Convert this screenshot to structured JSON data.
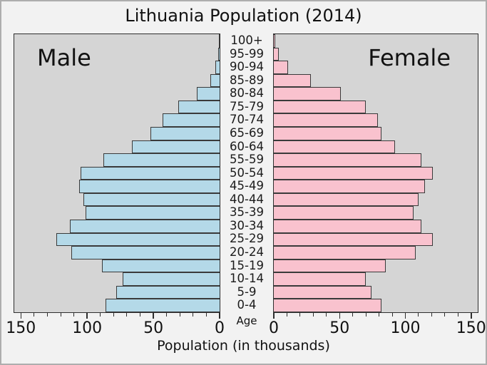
{
  "chart_data": {
    "type": "bar",
    "subtype": "population-pyramid",
    "title": "Lithuania Population (2014)",
    "xlabel": "Population (in thousands)",
    "age_axis_label": "Age",
    "unit": "thousands of people",
    "categories_top_to_bottom": [
      "100+",
      "95-99",
      "90-94",
      "85-89",
      "80-84",
      "75-79",
      "70-74",
      "65-69",
      "60-64",
      "55-59",
      "50-54",
      "45-49",
      "40-44",
      "35-39",
      "30-34",
      "25-29",
      "20-24",
      "15-19",
      "10-14",
      "5-9",
      "0-4"
    ],
    "series": [
      {
        "name": "Male",
        "side": "left",
        "color": "#b4d9e8",
        "values_top_to_bottom": [
          0.4,
          1,
          3,
          7,
          17,
          31,
          43,
          52,
          66,
          88,
          105,
          106,
          103,
          101,
          113,
          123,
          112,
          89,
          73,
          78,
          86
        ]
      },
      {
        "name": "Female",
        "side": "right",
        "color": "#f9c2ce",
        "values_top_to_bottom": [
          1,
          4,
          11,
          28,
          51,
          70,
          79,
          82,
          92,
          112,
          121,
          115,
          110,
          106,
          112,
          121,
          108,
          85,
          70,
          74,
          82
        ]
      }
    ],
    "xlim": [
      0,
      155
    ],
    "tick_values_major": [
      0,
      50,
      100,
      150
    ],
    "minor_tick_step": 10,
    "legend_position": "none",
    "grid": false
  },
  "colors": {
    "figure_background": "#f2f2f2",
    "plot_background": "#d5d5d5",
    "male_bar_fill": "#b4d9e8",
    "female_bar_fill": "#f9c2ce",
    "bar_outline": "#3a3a3a",
    "text": "#111111",
    "frame_border": "#aeaeae"
  }
}
